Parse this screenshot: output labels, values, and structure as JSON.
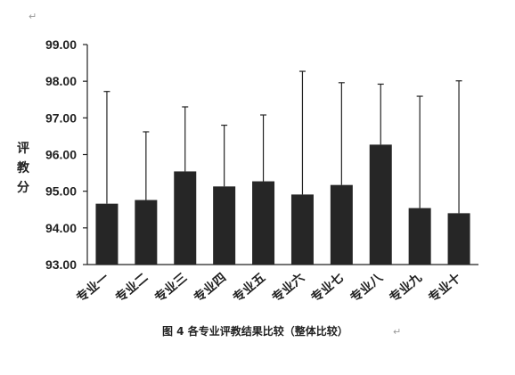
{
  "paragraph_mark": "↵",
  "caption": "图 4  各专业评教结果比较（整体比较）",
  "chart_data": {
    "type": "bar",
    "ylabel": "评教分",
    "ylim": [
      93.0,
      99.0
    ],
    "yticks": [
      "93.00",
      "94.00",
      "95.00",
      "96.00",
      "97.00",
      "98.00",
      "99.00"
    ],
    "categories": [
      "专业一",
      "专业二",
      "专业三",
      "专业四",
      "专业五",
      "专业六",
      "专业七",
      "专业八",
      "专业九",
      "专业十"
    ],
    "values": [
      94.66,
      94.76,
      95.54,
      95.13,
      95.27,
      94.91,
      95.17,
      96.27,
      94.54,
      94.4
    ],
    "error_upper": [
      97.72,
      96.62,
      97.3,
      96.8,
      97.08,
      98.27,
      97.96,
      97.92,
      97.59,
      98.01
    ],
    "bar_color": "#262626",
    "grid": false
  }
}
